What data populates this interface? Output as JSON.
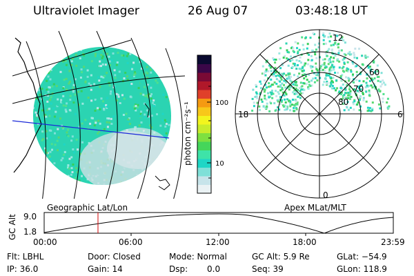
{
  "header": {
    "title": "Ultraviolet Imager",
    "date": "26 Aug 07",
    "time": "03:48:18 UT"
  },
  "colorbar": {
    "label": "photon cm⁻²s⁻¹",
    "ticks": [
      "100",
      "10"
    ],
    "colors": [
      "#eaf2f4",
      "#c7e4ea",
      "#7fe0d8",
      "#1fd6c6",
      "#3ee3a8",
      "#45d65a",
      "#7ee040",
      "#c8ec2c",
      "#f3f51e",
      "#f8c81a",
      "#f59a12",
      "#e0402a",
      "#b0182a",
      "#7a0a35",
      "#3a0748",
      "#0a0a30"
    ]
  },
  "polar": {
    "mlt_labels": [
      "12",
      "18",
      "6",
      "0"
    ],
    "lat_labels": [
      "60",
      "70",
      "80"
    ]
  },
  "projections": {
    "left": "Geographic Lat/Lon",
    "right": "Apex MLat/MLT"
  },
  "altplot": {
    "ylabel": "GC Alt",
    "yticks": [
      "9.0",
      "1.8"
    ],
    "xticks": [
      "00:00",
      "06:00",
      "12:00",
      "18:00",
      "23:59"
    ]
  },
  "info": {
    "flt": "Flt: LBHL",
    "ip": "IP: 36.0",
    "door": "Door: Closed",
    "gain": "Gain: 14",
    "mode": "Mode: Normal",
    "dsp_label": "Dsp:",
    "dsp_value": "0.0",
    "gcalt": "GC Alt: 5.9 Re",
    "seq": "Seq: 39",
    "glat": "GLat: −54.9",
    "glon": "GLon: 118.9"
  }
}
